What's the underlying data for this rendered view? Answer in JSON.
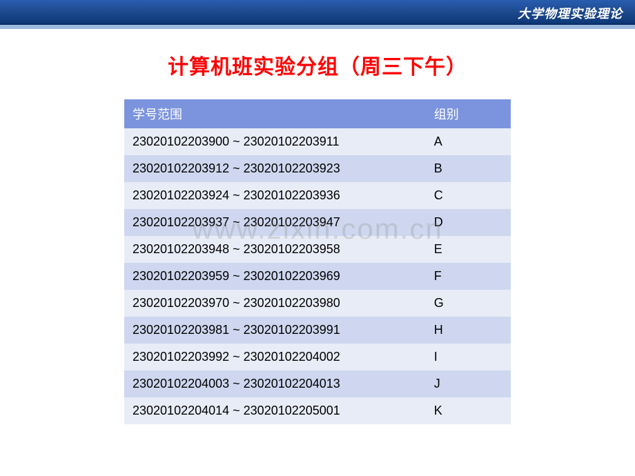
{
  "header": {
    "title": "大学物理实验理论"
  },
  "slide": {
    "title": "计算机班实验分组（周三下午）"
  },
  "watermark": "www.zixin.com.cn",
  "table": {
    "columns": {
      "range": "学号范围",
      "group": "组别"
    },
    "rows": [
      {
        "range": "23020102203900 ~ 23020102203911",
        "group": "A"
      },
      {
        "range": "23020102203912 ~ 23020102203923",
        "group": "B"
      },
      {
        "range": "23020102203924 ~ 23020102203936",
        "group": "C"
      },
      {
        "range": "23020102203937 ~ 23020102203947",
        "group": "D"
      },
      {
        "range": "23020102203948 ~ 23020102203958",
        "group": "E"
      },
      {
        "range": "23020102203959 ~ 23020102203969",
        "group": "F"
      },
      {
        "range": "23020102203970 ~ 23020102203980",
        "group": "G"
      },
      {
        "range": "23020102203981 ~ 23020102203991",
        "group": "H"
      },
      {
        "range": "23020102203992 ~ 23020102204002",
        "group": "I"
      },
      {
        "range": "23020102204003 ~ 23020102204013",
        "group": "J"
      },
      {
        "range": "23020102204014 ~ 23020102205001",
        "group": "K"
      }
    ]
  },
  "styling": {
    "header_bg_gradient": [
      "#2a5db0",
      "#1e4a8f",
      "#0d3878"
    ],
    "header_text_color": "#ffffff",
    "title_color": "#ff0000",
    "title_fontsize": 30,
    "table_header_bg": "#7c94de",
    "table_header_text": "#ffffff",
    "row_odd_bg": "#e8ecf7",
    "row_even_bg": "#ced7ef",
    "cell_text_color": "#000000",
    "watermark_color": "rgba(140,140,140,0.28)",
    "body_bg": "#ffffff",
    "table_fontsize": 18
  }
}
